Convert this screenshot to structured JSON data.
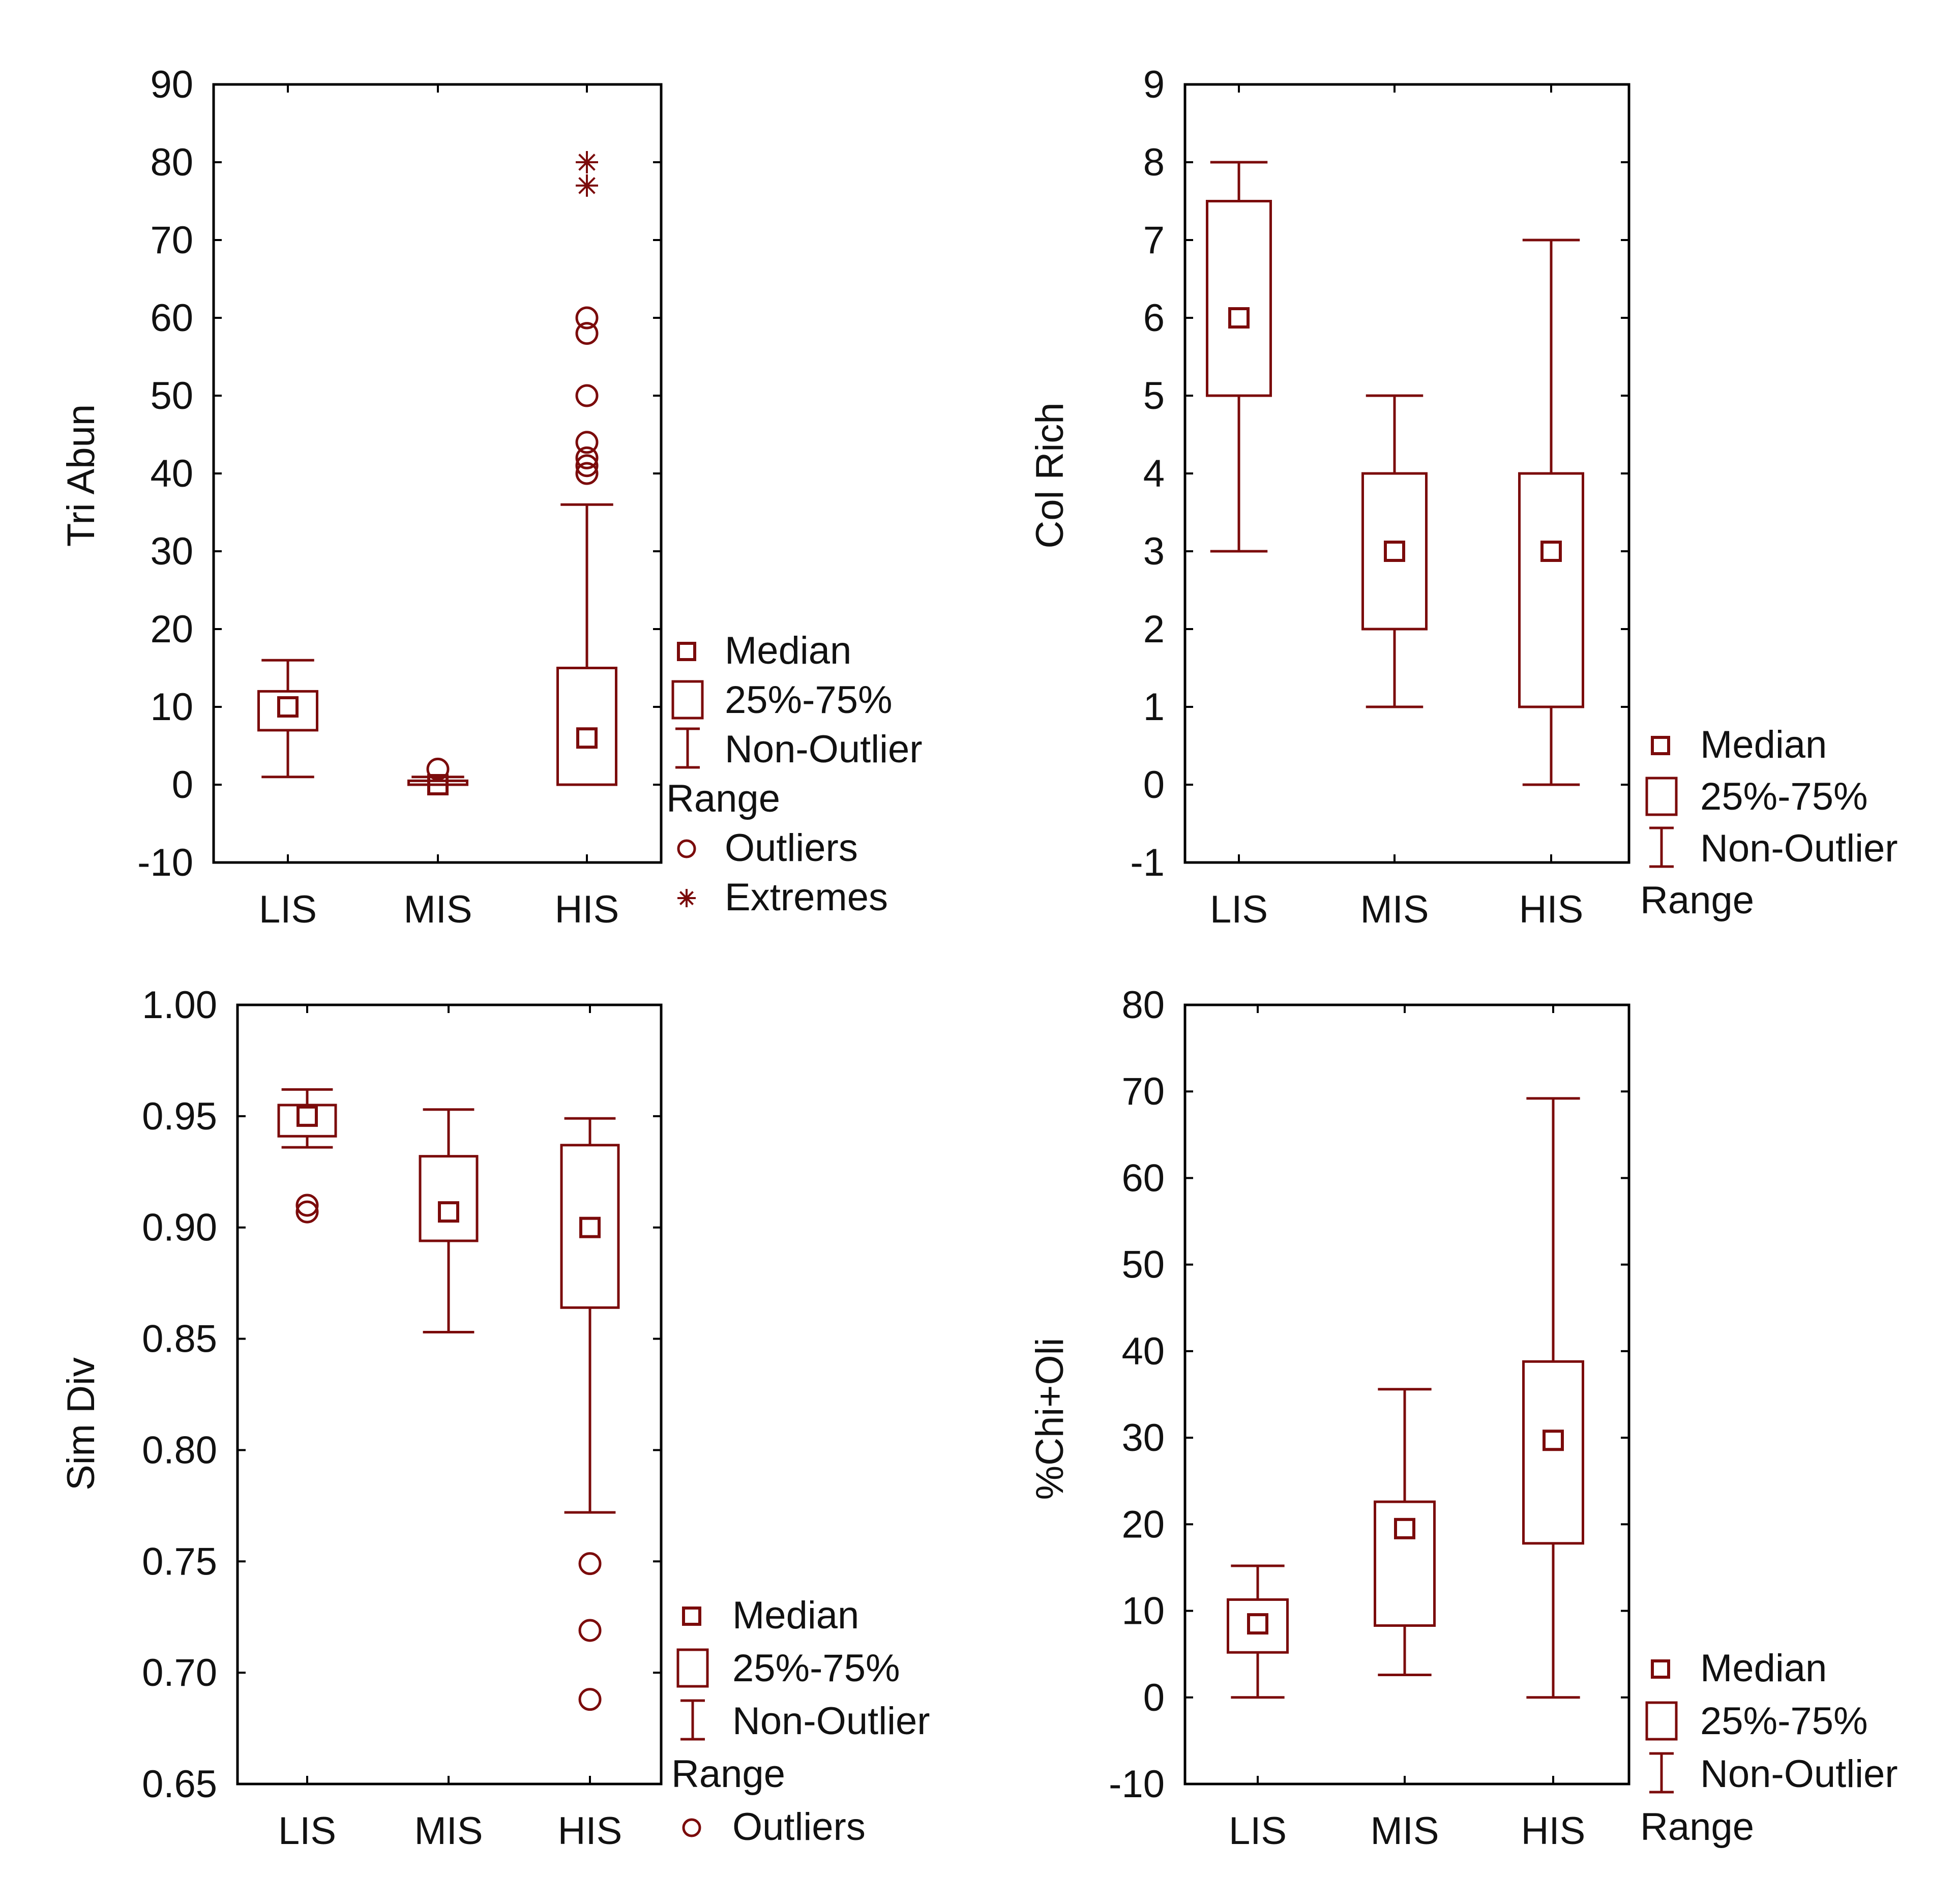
{
  "colors": {
    "series": "#7b0b0b",
    "axis": "#000000",
    "text": "#111111"
  },
  "legend_labels": {
    "median": "Median",
    "iqr": "25%-75%",
    "range_line1": "Non-Outlier",
    "range_line2": "Range",
    "outliers": "Outliers",
    "extremes": "Extremes"
  },
  "chart_data": [
    {
      "id": "tri-abun",
      "type": "box",
      "ylabel": "Tri Abun",
      "categories": [
        "LIS",
        "MIS",
        "HIS"
      ],
      "ylim": [
        -10,
        90
      ],
      "yticks": [
        -10,
        0,
        10,
        20,
        30,
        40,
        50,
        60,
        70,
        80,
        90
      ],
      "tick_labels": [
        "-10",
        "0",
        "10",
        "20",
        "30",
        "40",
        "50",
        "60",
        "70",
        "80",
        "90"
      ],
      "boxes": [
        {
          "median": 10,
          "q1": 7,
          "q3": 12,
          "min": 1,
          "max": 16,
          "outliers": [],
          "extremes": []
        },
        {
          "median": 0,
          "q1": 0,
          "q3": 0.5,
          "min": 0,
          "max": 1,
          "outliers": [
            2
          ],
          "extremes": []
        },
        {
          "median": 6,
          "q1": 0,
          "q3": 15,
          "min": 0,
          "max": 36,
          "outliers": [
            40,
            41,
            42,
            44,
            50,
            58,
            60
          ],
          "extremes": [
            77,
            80
          ]
        }
      ],
      "legend": [
        "median",
        "iqr",
        "range",
        "outliers",
        "extremes"
      ]
    },
    {
      "id": "col-rich",
      "type": "box",
      "ylabel": "Col Rich",
      "categories": [
        "LIS",
        "MIS",
        "HIS"
      ],
      "ylim": [
        -1,
        9
      ],
      "yticks": [
        -1,
        0,
        1,
        2,
        3,
        4,
        5,
        6,
        7,
        8,
        9
      ],
      "tick_labels": [
        "-1",
        "0",
        "1",
        "2",
        "3",
        "4",
        "5",
        "6",
        "7",
        "8",
        "9"
      ],
      "boxes": [
        {
          "median": 6,
          "q1": 5,
          "q3": 7.5,
          "min": 3,
          "max": 8,
          "outliers": [],
          "extremes": []
        },
        {
          "median": 3,
          "q1": 2,
          "q3": 4,
          "min": 1,
          "max": 5,
          "outliers": [],
          "extremes": []
        },
        {
          "median": 3,
          "q1": 1,
          "q3": 4,
          "min": 0,
          "max": 7,
          "outliers": [],
          "extremes": []
        }
      ],
      "legend": [
        "median",
        "iqr",
        "range"
      ]
    },
    {
      "id": "sim-div",
      "type": "box",
      "ylabel": "Sim Div",
      "categories": [
        "LIS",
        "MIS",
        "HIS"
      ],
      "ylim": [
        0.65,
        1.0
      ],
      "yticks": [
        0.65,
        0.7,
        0.75,
        0.8,
        0.85,
        0.9,
        0.95,
        1.0
      ],
      "tick_labels": [
        "0.65",
        "0.70",
        "0.75",
        "0.80",
        "0.85",
        "0.90",
        "0.95",
        "1.00"
      ],
      "boxes": [
        {
          "median": 0.95,
          "q1": 0.941,
          "q3": 0.955,
          "min": 0.936,
          "max": 0.962,
          "outliers": [
            0.907,
            0.91
          ],
          "extremes": []
        },
        {
          "median": 0.907,
          "q1": 0.894,
          "q3": 0.932,
          "min": 0.853,
          "max": 0.953,
          "outliers": [],
          "extremes": []
        },
        {
          "median": 0.9,
          "q1": 0.864,
          "q3": 0.937,
          "min": 0.772,
          "max": 0.949,
          "outliers": [
            0.688,
            0.719,
            0.749
          ],
          "extremes": []
        }
      ],
      "legend": [
        "median",
        "iqr",
        "range",
        "outliers"
      ]
    },
    {
      "id": "chi-oli",
      "type": "box",
      "ylabel": "%Chi+Oli",
      "categories": [
        "LIS",
        "MIS",
        "HIS"
      ],
      "ylim": [
        -10,
        80
      ],
      "yticks": [
        -10,
        0,
        10,
        20,
        30,
        40,
        50,
        60,
        70,
        80
      ],
      "tick_labels": [
        "-10",
        "0",
        "10",
        "20",
        "30",
        "40",
        "50",
        "60",
        "70",
        "80"
      ],
      "boxes": [
        {
          "median": 8.5,
          "q1": 5.2,
          "q3": 11.3,
          "min": 0,
          "max": 15.2,
          "outliers": [],
          "extremes": []
        },
        {
          "median": 19.5,
          "q1": 8.3,
          "q3": 22.6,
          "min": 2.6,
          "max": 35.6,
          "outliers": [],
          "extremes": []
        },
        {
          "median": 29.7,
          "q1": 17.8,
          "q3": 38.8,
          "min": 0,
          "max": 69.2,
          "outliers": [],
          "extremes": []
        }
      ],
      "legend": [
        "median",
        "iqr",
        "range"
      ]
    }
  ]
}
